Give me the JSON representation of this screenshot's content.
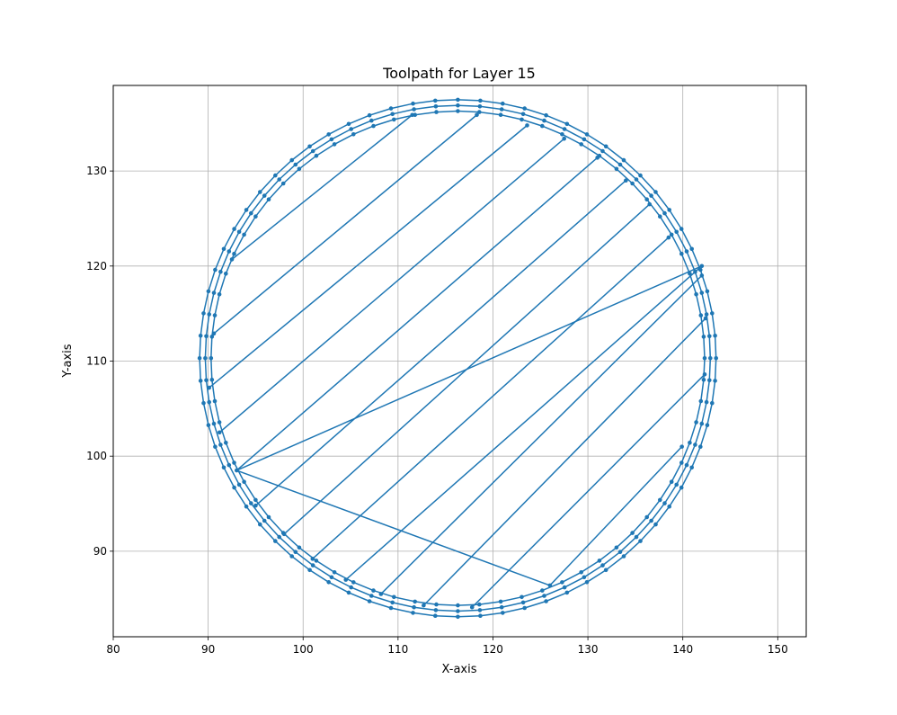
{
  "chart_data": {
    "type": "line",
    "title": "Toolpath for Layer 15",
    "xlabel": "X-axis",
    "ylabel": "Y-axis",
    "xlim": [
      80,
      153
    ],
    "ylim": [
      81,
      139
    ],
    "xticks": [
      80,
      90,
      100,
      110,
      120,
      130,
      140,
      150
    ],
    "yticks": [
      90,
      100,
      110,
      120,
      130
    ],
    "grid": true,
    "color": "#1f77b4",
    "center": [
      116.3,
      110.3
    ],
    "perimeter_radii": [
      26.0,
      26.6,
      27.2
    ],
    "infill_segments": [
      [
        [
          92.5,
          120.7
        ],
        [
          111.5,
          135.9
        ]
      ],
      [
        [
          90.6,
          112.9
        ],
        [
          118.3,
          135.9
        ]
      ],
      [
        [
          90.1,
          107.2
        ],
        [
          123.6,
          134.8
        ]
      ],
      [
        [
          91.2,
          102.5
        ],
        [
          127.5,
          133.4
        ]
      ],
      [
        [
          93.0,
          98.5
        ],
        [
          131.0,
          131.4
        ]
      ],
      [
        [
          95.0,
          94.8
        ],
        [
          134.0,
          129.0
        ]
      ],
      [
        [
          98.0,
          91.8
        ],
        [
          136.5,
          126.5
        ]
      ],
      [
        [
          101.0,
          89.2
        ],
        [
          138.5,
          123.0
        ]
      ],
      [
        [
          104.5,
          87.0
        ],
        [
          142.0,
          120.0
        ]
      ],
      [
        [
          108.2,
          85.5
        ],
        [
          142.0,
          119.0
        ]
      ],
      [
        [
          112.7,
          84.3
        ],
        [
          142.4,
          114.5
        ]
      ],
      [
        [
          117.8,
          84.1
        ],
        [
          142.3,
          108.6
        ]
      ],
      [
        [
          126.0,
          86.4
        ],
        [
          139.9,
          101.0
        ]
      ]
    ],
    "travel_moves": [
      [
        [
          142.0,
          120.0
        ],
        [
          93.0,
          98.5
        ]
      ],
      [
        [
          93.0,
          98.5
        ],
        [
          126.0,
          86.4
        ]
      ]
    ]
  }
}
